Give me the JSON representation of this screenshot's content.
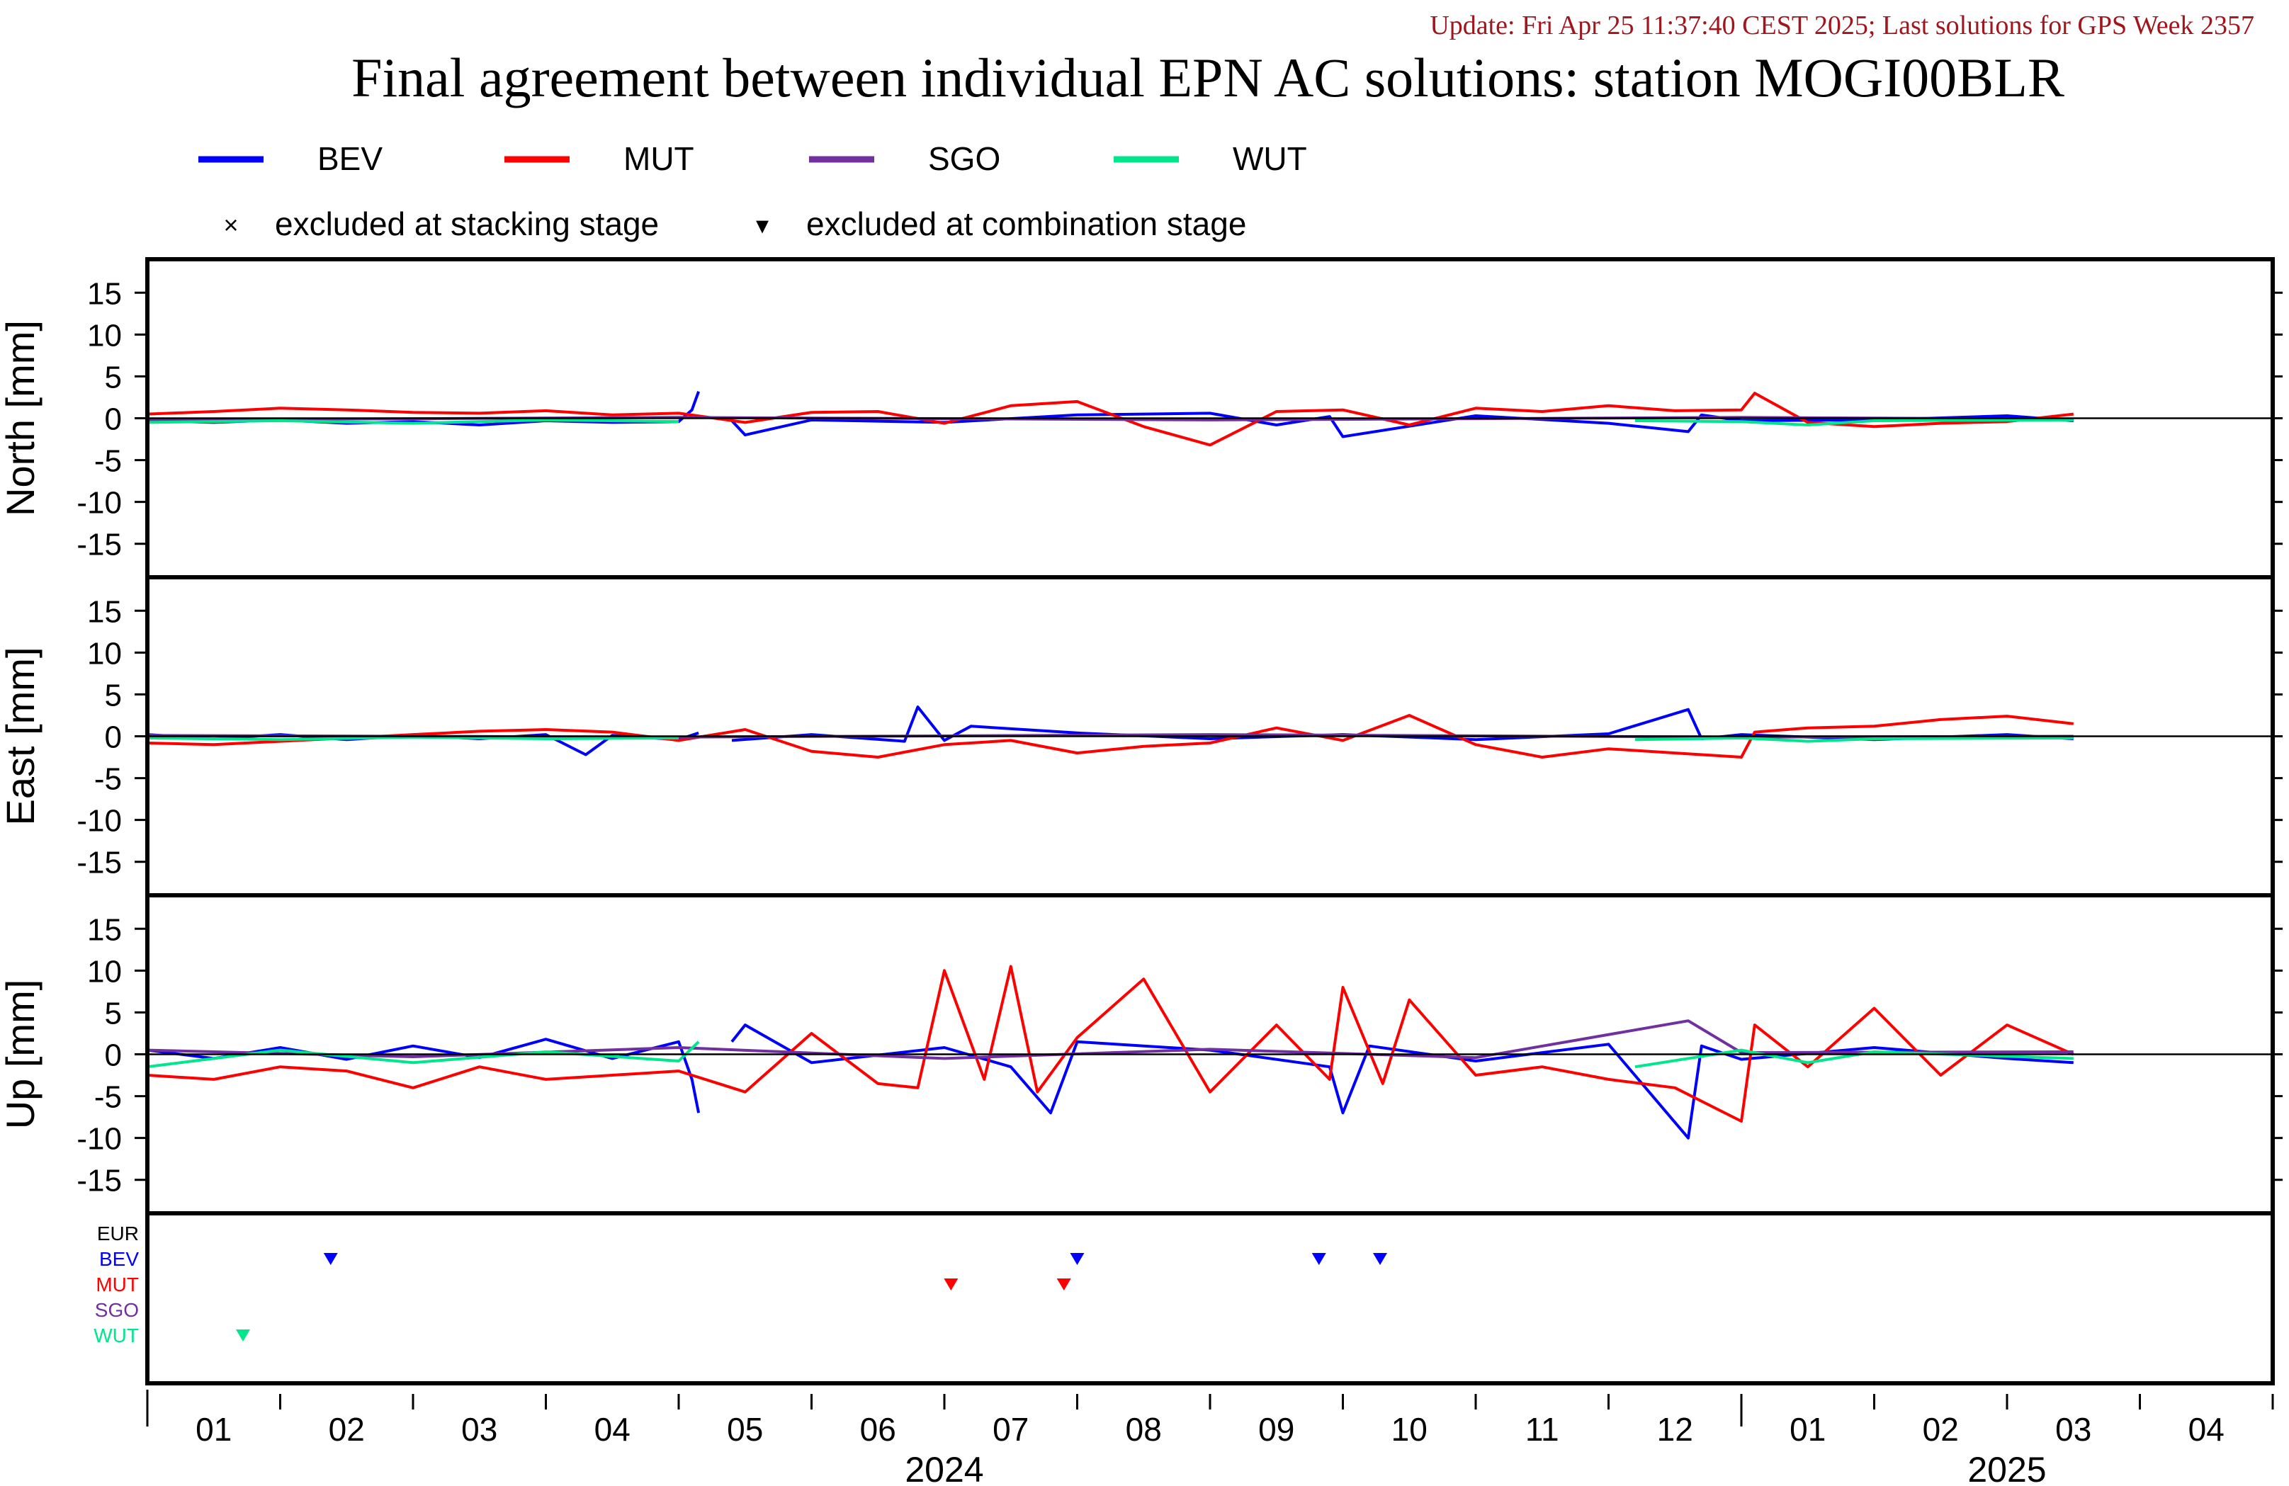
{
  "header": {
    "update_text": "Update: Fri Apr 25 11:37:40 CEST 2025; Last solutions for GPS Week 2357",
    "title": "Final agreement between individual EPN AC solutions: station MOGI00BLR"
  },
  "legend": {
    "series": [
      {
        "name": "BEV",
        "color": "#0000ff"
      },
      {
        "name": "MUT",
        "color": "#ff0000"
      },
      {
        "name": "SGO",
        "color": "#7030a0"
      },
      {
        "name": "WUT",
        "color": "#00e68c"
      }
    ],
    "markers": [
      {
        "symbol": "×",
        "label": "excluded at stacking stage"
      },
      {
        "symbol": "▾",
        "label": "excluded at combination stage"
      }
    ]
  },
  "chart_data": {
    "type": "line",
    "x_range_months": [
      0,
      16
    ],
    "ylim": [
      -19,
      19
    ],
    "yticks": [
      15,
      10,
      5,
      0,
      -5,
      -10,
      -15
    ],
    "grid": false,
    "legend_placement": "top",
    "panels": [
      {
        "ylabel": "North [mm]",
        "series": [
          {
            "name": "BEV",
            "segments": [
              {
                "x": [
                  0.0,
                  0.5,
                  1.0,
                  1.5,
                  2.0,
                  2.5,
                  3.0,
                  3.5,
                  4.0,
                  4.1,
                  4.15
                ],
                "y": [
                  -0.3,
                  -0.5,
                  -0.2,
                  -0.6,
                  -0.4,
                  -0.8,
                  -0.3,
                  -0.5,
                  -0.4,
                  1.0,
                  3.2
                ]
              },
              {
                "x": [
                  4.4,
                  4.5,
                  5.0,
                  6.0,
                  7.0,
                  8.0,
                  8.5,
                  8.9,
                  9.0,
                  10.0,
                  11.0,
                  11.6,
                  11.7,
                  12.0,
                  13.0,
                  14.0,
                  14.5
                ],
                "y": [
                  -0.3,
                  -2.0,
                  -0.2,
                  -0.5,
                  0.4,
                  0.6,
                  -0.8,
                  0.2,
                  -2.2,
                  0.3,
                  -0.6,
                  -1.6,
                  0.4,
                  -0.3,
                  -0.2,
                  0.3,
                  -0.3
                ]
              }
            ]
          },
          {
            "name": "MUT",
            "segments": [
              {
                "x": [
                  0.0,
                  0.5,
                  1.0,
                  1.5,
                  2.0,
                  2.5,
                  3.0,
                  3.5,
                  4.0,
                  4.5,
                  5.0,
                  5.5,
                  6.0,
                  6.5,
                  7.0,
                  7.5,
                  8.0,
                  8.5,
                  9.0,
                  9.5,
                  10.0,
                  10.5,
                  11.0,
                  11.5,
                  12.0,
                  12.1,
                  12.5,
                  13.0,
                  13.5,
                  14.0,
                  14.5
                ],
                "y": [
                  0.5,
                  0.8,
                  1.2,
                  1.0,
                  0.7,
                  0.6,
                  0.9,
                  0.4,
                  0.6,
                  -0.5,
                  0.7,
                  0.8,
                  -0.6,
                  1.5,
                  2.0,
                  -1.0,
                  -3.2,
                  0.8,
                  1.0,
                  -0.8,
                  1.2,
                  0.8,
                  1.5,
                  0.9,
                  1.0,
                  3.0,
                  -0.5,
                  -1.0,
                  -0.6,
                  -0.4,
                  0.5
                ]
              }
            ]
          },
          {
            "name": "SGO",
            "segments": [
              {
                "x": [
                  0.0,
                  4.0,
                  8.0,
                  12.0,
                  14.5
                ],
                "y": [
                  -0.2,
                  0.1,
                  -0.2,
                  0.1,
                  -0.1
                ]
              }
            ]
          },
          {
            "name": "WUT",
            "segments": [
              {
                "x": [
                  0.0,
                  1.0,
                  2.0,
                  3.0,
                  4.0
                ],
                "y": [
                  -0.5,
                  -0.3,
                  -0.6,
                  -0.2,
                  -0.4
                ]
              },
              {
                "x": [
                  11.2,
                  12.0,
                  12.5,
                  13.0,
                  14.5
                ],
                "y": [
                  -0.3,
                  -0.4,
                  -0.8,
                  -0.3,
                  -0.2
                ]
              }
            ]
          }
        ],
        "excluded": []
      },
      {
        "ylabel": "East [mm]",
        "series": [
          {
            "name": "BEV",
            "segments": [
              {
                "x": [
                  0.0,
                  0.5,
                  1.0,
                  1.5,
                  2.0,
                  2.5,
                  3.0,
                  3.3,
                  3.5,
                  4.0,
                  4.15
                ],
                "y": [
                  0.2,
                  -0.3,
                  0.2,
                  -0.4,
                  0.1,
                  -0.3,
                  0.2,
                  -2.2,
                  0.1,
                  -0.4,
                  0.4
                ]
              },
              {
                "x": [
                  4.4,
                  5.0,
                  5.7,
                  5.8,
                  6.0,
                  6.2,
                  7.0,
                  8.0,
                  9.0,
                  10.0,
                  11.0,
                  11.6,
                  11.7,
                  12.0,
                  13.0,
                  14.0,
                  14.5
                ],
                "y": [
                  -0.5,
                  0.2,
                  -0.6,
                  3.5,
                  -0.5,
                  1.2,
                  0.4,
                  -0.3,
                  0.2,
                  -0.4,
                  0.3,
                  3.2,
                  -0.3,
                  0.2,
                  -0.4,
                  0.2,
                  -0.3
                ]
              }
            ]
          },
          {
            "name": "MUT",
            "segments": [
              {
                "x": [
                  0.0,
                  0.5,
                  1.0,
                  1.5,
                  2.0,
                  2.5,
                  3.0,
                  3.5,
                  4.0,
                  4.5,
                  5.0,
                  5.5,
                  6.0,
                  6.5,
                  7.0,
                  7.5,
                  8.0,
                  8.5,
                  9.0,
                  9.5,
                  10.0,
                  10.5,
                  11.0,
                  11.5,
                  12.0,
                  12.1,
                  12.5,
                  13.0,
                  13.5,
                  14.0,
                  14.5
                ],
                "y": [
                  -0.8,
                  -1.0,
                  -0.6,
                  -0.2,
                  0.2,
                  0.6,
                  0.8,
                  0.5,
                  -0.5,
                  0.8,
                  -1.8,
                  -2.5,
                  -1.0,
                  -0.5,
                  -2.0,
                  -1.2,
                  -0.8,
                  1.0,
                  -0.5,
                  2.5,
                  -1.0,
                  -2.5,
                  -1.5,
                  -2.0,
                  -2.5,
                  0.5,
                  1.0,
                  1.2,
                  2.0,
                  2.4,
                  1.5
                ]
              }
            ]
          },
          {
            "name": "SGO",
            "segments": [
              {
                "x": [
                  0.0,
                  4.0,
                  8.0,
                  12.0,
                  14.5
                ],
                "y": [
                  0.1,
                  -0.1,
                  0.2,
                  -0.1,
                  0.0
                ]
              }
            ]
          },
          {
            "name": "WUT",
            "segments": [
              {
                "x": [
                  0.0,
                  1.0,
                  2.0,
                  3.0,
                  4.0
                ],
                "y": [
                  -0.2,
                  -0.4,
                  -0.1,
                  -0.3,
                  -0.2
                ]
              },
              {
                "x": [
                  11.2,
                  12.0,
                  12.5,
                  13.0,
                  14.5
                ],
                "y": [
                  -0.4,
                  -0.2,
                  -0.6,
                  -0.3,
                  -0.2
                ]
              }
            ]
          }
        ],
        "excluded": []
      },
      {
        "ylabel": "Up [mm]",
        "series": [
          {
            "name": "BEV",
            "segments": [
              {
                "x": [
                  0.0,
                  0.5,
                  1.0,
                  1.5,
                  2.0,
                  2.5,
                  3.0,
                  3.5,
                  4.0,
                  4.1,
                  4.15
                ],
                "y": [
                  0.5,
                  -0.5,
                  0.8,
                  -0.6,
                  1.0,
                  -0.4,
                  1.8,
                  -0.5,
                  1.5,
                  -3.0,
                  -7.0
                ]
              },
              {
                "x": [
                  4.4,
                  4.5,
                  5.0,
                  6.0,
                  6.5,
                  6.8,
                  7.0,
                  8.0,
                  8.9,
                  9.0,
                  9.2,
                  10.0,
                  11.0,
                  11.6,
                  11.7,
                  12.0,
                  13.0,
                  14.0,
                  14.5
                ],
                "y": [
                  1.5,
                  3.5,
                  -1.0,
                  0.8,
                  -1.5,
                  -7.0,
                  1.5,
                  0.5,
                  -1.5,
                  -7.0,
                  1.0,
                  -0.8,
                  1.2,
                  -10.0,
                  1.0,
                  -0.6,
                  0.8,
                  -0.5,
                  -1.0
                ]
              }
            ]
          },
          {
            "name": "MUT",
            "segments": [
              {
                "x": [
                  0.0,
                  0.5,
                  1.0,
                  1.5,
                  2.0,
                  2.5,
                  3.0,
                  3.5,
                  4.0,
                  4.5,
                  5.0,
                  5.5,
                  5.8,
                  6.0,
                  6.3,
                  6.5,
                  6.7,
                  7.0,
                  7.5,
                  8.0,
                  8.5,
                  8.9,
                  9.0,
                  9.3,
                  9.5,
                  10.0,
                  10.5,
                  11.0,
                  11.5,
                  12.0,
                  12.1,
                  12.5,
                  13.0,
                  13.5,
                  14.0,
                  14.5
                ],
                "y": [
                  -2.5,
                  -3.0,
                  -1.5,
                  -2.0,
                  -4.0,
                  -1.5,
                  -3.0,
                  -2.5,
                  -2.0,
                  -4.5,
                  2.5,
                  -3.5,
                  -4.0,
                  10.0,
                  -3.0,
                  10.5,
                  -4.5,
                  2.0,
                  9.0,
                  -4.5,
                  3.5,
                  -3.0,
                  8.0,
                  -3.5,
                  6.5,
                  -2.5,
                  -1.5,
                  -3.0,
                  -4.0,
                  -8.0,
                  3.5,
                  -1.5,
                  5.5,
                  -2.5,
                  3.5,
                  0.0
                ]
              }
            ]
          },
          {
            "name": "SGO",
            "segments": [
              {
                "x": [
                  0.0,
                  2.0,
                  4.0,
                  6.0,
                  8.0,
                  10.0,
                  11.6,
                  12.0,
                  14.5
                ],
                "y": [
                  0.5,
                  -0.3,
                  0.8,
                  -0.5,
                  0.6,
                  -0.4,
                  4.0,
                  0.2,
                  0.3
                ]
              }
            ]
          },
          {
            "name": "WUT",
            "segments": [
              {
                "x": [
                  0.0,
                  1.0,
                  2.0,
                  3.0,
                  4.0,
                  4.15
                ],
                "y": [
                  -1.5,
                  0.5,
                  -1.0,
                  0.3,
                  -0.8,
                  1.5
                ]
              },
              {
                "x": [
                  11.2,
                  12.0,
                  12.5,
                  13.0,
                  14.5
                ],
                "y": [
                  -1.5,
                  0.5,
                  -1.0,
                  0.3,
                  -0.5
                ]
              }
            ]
          }
        ],
        "excluded": []
      }
    ],
    "exclusion_panel": {
      "row_labels": [
        {
          "name": "EUR",
          "color": "#000000"
        },
        {
          "name": "BEV",
          "color": "#0000ff"
        },
        {
          "name": "MUT",
          "color": "#ff0000"
        },
        {
          "name": "SGO",
          "color": "#7030a0"
        },
        {
          "name": "WUT",
          "color": "#00e68c"
        }
      ],
      "combination_excluded": [
        {
          "row": "BEV",
          "x": 1.38
        },
        {
          "row": "WUT",
          "x": 0.72
        },
        {
          "row": "MUT",
          "x": 6.05
        },
        {
          "row": "MUT",
          "x": 6.9
        },
        {
          "row": "BEV",
          "x": 7.0
        },
        {
          "row": "BEV",
          "x": 8.82
        },
        {
          "row": "BEV",
          "x": 9.28
        }
      ]
    },
    "x_ticks": [
      {
        "label": "01",
        "x": 0.5
      },
      {
        "label": "02",
        "x": 1.5
      },
      {
        "label": "03",
        "x": 2.5
      },
      {
        "label": "04",
        "x": 3.5
      },
      {
        "label": "05",
        "x": 4.5
      },
      {
        "label": "06",
        "x": 5.5
      },
      {
        "label": "07",
        "x": 6.5
      },
      {
        "label": "08",
        "x": 7.5
      },
      {
        "label": "09",
        "x": 8.5
      },
      {
        "label": "10",
        "x": 9.5
      },
      {
        "label": "11",
        "x": 10.5
      },
      {
        "label": "12",
        "x": 11.5
      },
      {
        "label": "01",
        "x": 12.5
      },
      {
        "label": "02",
        "x": 13.5
      },
      {
        "label": "03",
        "x": 14.5
      },
      {
        "label": "04",
        "x": 15.5
      }
    ],
    "years": [
      {
        "label": "2024",
        "x": 6.0
      },
      {
        "label": "2025",
        "x": 14.0
      }
    ]
  }
}
